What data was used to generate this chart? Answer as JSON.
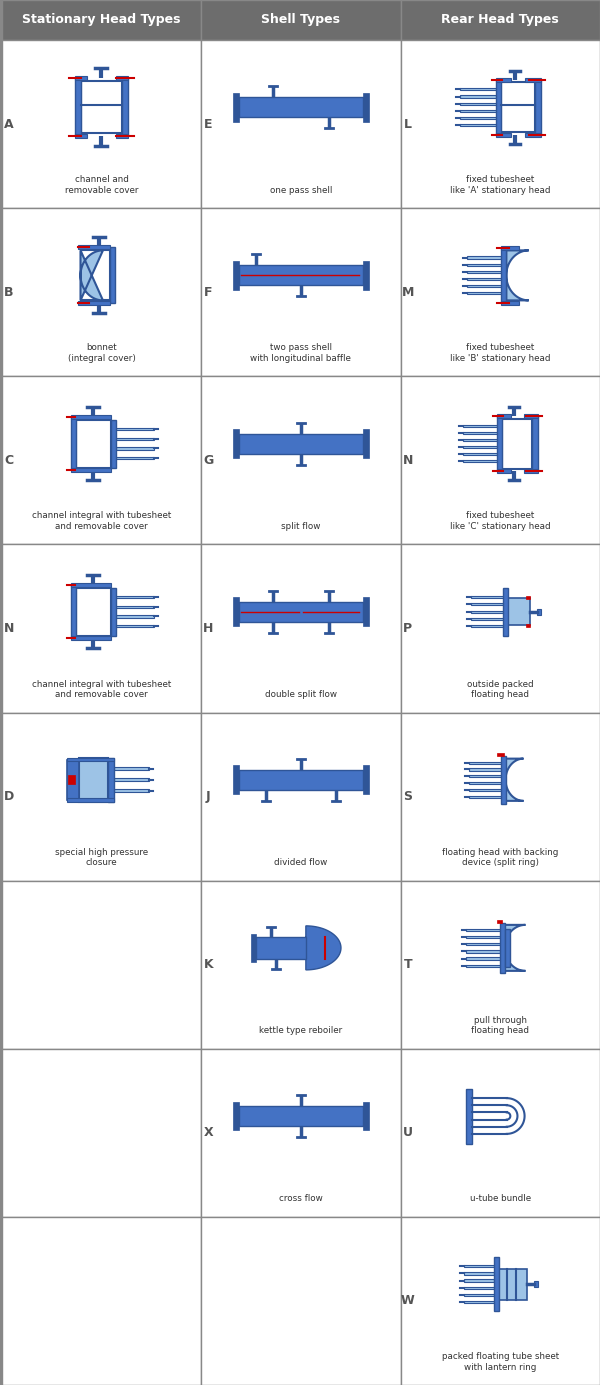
{
  "col_headers": [
    "Stationary Head Types",
    "Shell Types",
    "Rear Head Types"
  ],
  "header_bg": "#6d6d6d",
  "border_color": "#888888",
  "blue_main": "#4472C4",
  "blue_light": "#9DC3E6",
  "blue_dark": "#2F5597",
  "red_accent": "#CC0000",
  "white": "#ffffff",
  "row_letters_stat": [
    "A",
    "B",
    "C",
    "N",
    "D",
    "",
    "",
    ""
  ],
  "row_letters_shell": [
    "E",
    "F",
    "G",
    "H",
    "J",
    "K",
    "X",
    ""
  ],
  "row_letters_rear": [
    "L",
    "M",
    "N",
    "P",
    "S",
    "T",
    "U",
    "W"
  ],
  "stat_captions": [
    "channel and\nremovable cover",
    "bonnet\n(integral cover)",
    "channel integral with tubesheet\nand removable cover",
    "channel integral with tubesheet\nand removable cover",
    "special high pressure\nclosure",
    "",
    "",
    ""
  ],
  "shell_captions": [
    "one pass shell",
    "two pass shell\nwith longitudinal baffle",
    "split flow",
    "double split flow",
    "divided flow",
    "kettle type reboiler",
    "cross flow",
    ""
  ],
  "rear_captions": [
    "fixed tubesheet\nlike 'A' stationary head",
    "fixed tubesheet\nlike 'B' stationary head",
    "fixed tubesheet\nlike 'C' stationary head",
    "outside packed\nfloating head",
    "floating head with backing\ndevice (split ring)",
    "pull through\nfloating head",
    "u-tube bundle",
    "packed floating tube sheet\nwith lantern ring"
  ]
}
